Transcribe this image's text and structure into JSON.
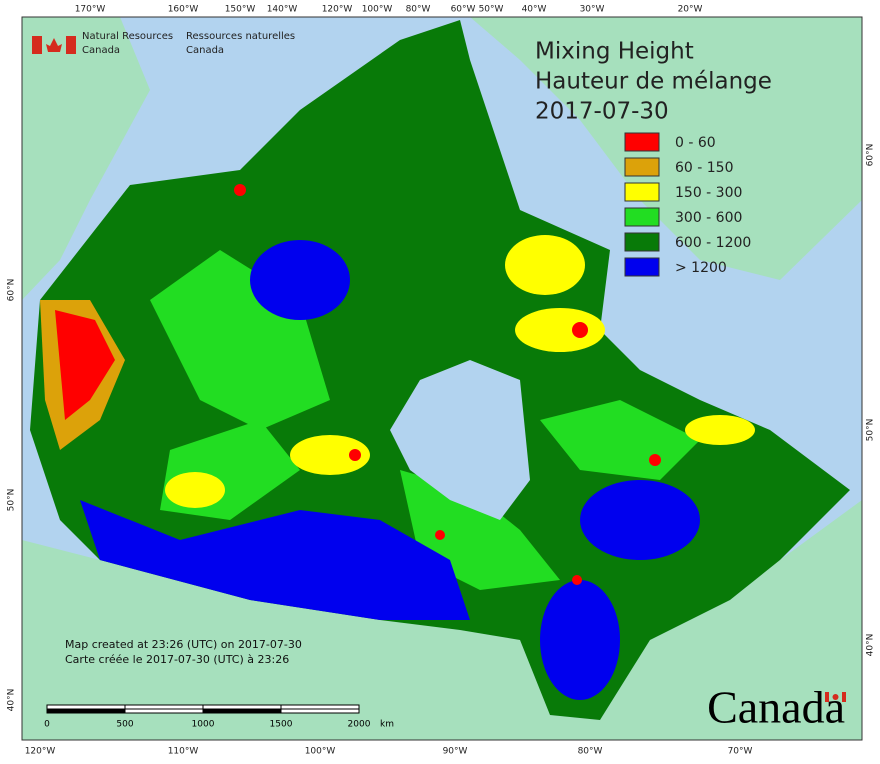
{
  "header": {
    "org_en": [
      "Natural Resources",
      "Canada"
    ],
    "org_fr": [
      "Ressources naturelles",
      "Canada"
    ]
  },
  "title": [
    "Mixing Height",
    "Hauteur de mélange",
    "2017-07-30"
  ],
  "legend": [
    {
      "label": "0 - 60",
      "color": "#ff0000"
    },
    {
      "label": "60 - 150",
      "color": "#dca20a"
    },
    {
      "label": "150 - 300",
      "color": "#ffff00"
    },
    {
      "label": "300 - 600",
      "color": "#22dd22"
    },
    {
      "label": "600 - 1200",
      "color": "#087a08"
    },
    {
      "label": "> 1200",
      "color": "#0000ee"
    }
  ],
  "graticule": {
    "top": [
      "170°W",
      "160°W",
      "150°W",
      "140°W",
      "120°W",
      "100°W",
      "80°W",
      "60°W",
      "50°W",
      "40°W",
      "30°W",
      "20°W"
    ],
    "bottom": [
      "120°W",
      "110°W",
      "100°W",
      "90°W",
      "80°W",
      "70°W"
    ],
    "left": [
      "60°N",
      "50°N",
      "40°N"
    ],
    "right": [
      "60°N",
      "50°N",
      "40°N"
    ]
  },
  "credits": [
    "Map created at 23:26 (UTC) on 2017-07-30",
    "Carte créée le 2017-07-30 (UTC) à 23:26"
  ],
  "scale_bar": {
    "labels": [
      "0",
      "500",
      "1000",
      "1500",
      "2000"
    ],
    "unit": "km"
  },
  "wordmark": "Canada"
}
